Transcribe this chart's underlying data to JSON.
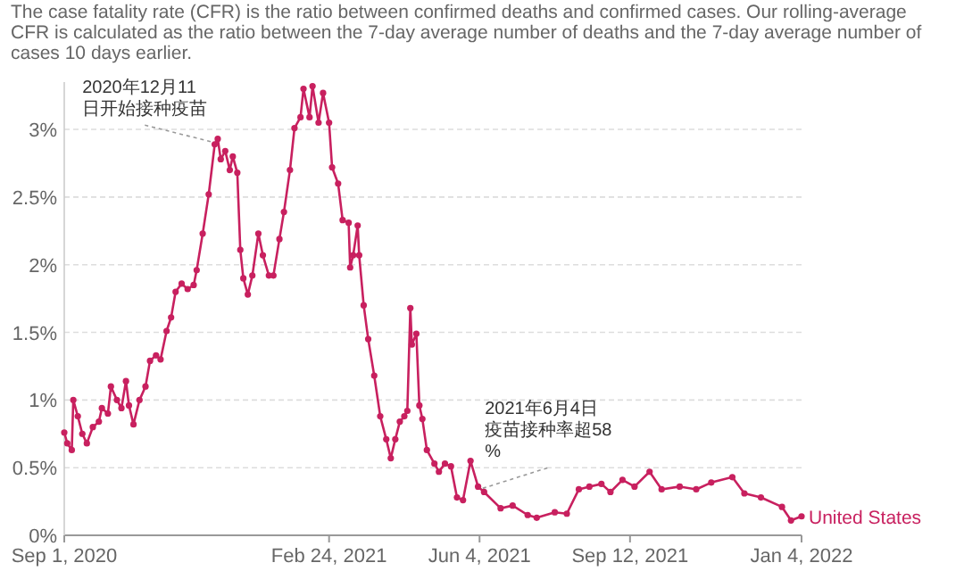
{
  "chart_data": {
    "type": "line",
    "subtitle": "The case fatality rate (CFR) is the ratio between confirmed deaths and confirmed cases. Our rolling-average CFR is calculated as the ratio between the 7-day average number of deaths and the 7-day average number of cases 10 days earlier.",
    "xlim": [
      "2020-09-01",
      "2022-01-04"
    ],
    "xticks": [
      {
        "value": "2020-09-01",
        "label": "Sep 1, 2020"
      },
      {
        "value": "2021-02-24",
        "label": "Feb 24, 2021"
      },
      {
        "value": "2021-06-04",
        "label": "Jun 4, 2021"
      },
      {
        "value": "2021-09-12",
        "label": "Sep 12, 2021"
      },
      {
        "value": "2022-01-04",
        "label": "Jan 4, 2022"
      }
    ],
    "ylim": [
      0,
      3.35
    ],
    "yticks": [
      {
        "value": 0,
        "label": "0%"
      },
      {
        "value": 0.5,
        "label": "0.5%"
      },
      {
        "value": 1,
        "label": "1%"
      },
      {
        "value": 1.5,
        "label": "1.5%"
      },
      {
        "value": 2,
        "label": "2%"
      },
      {
        "value": 2.5,
        "label": "2.5%"
      },
      {
        "value": 3,
        "label": "3%"
      }
    ],
    "grid": "y",
    "legend": false,
    "marker": "circle",
    "annotations": [
      {
        "text": "2020年12月11日开始接种疫苗",
        "x": "2020-12-11",
        "y": 2.9
      },
      {
        "text": "2021年6月4日疫苗接种率超58%",
        "x": "2021-06-04",
        "y": 0.34
      }
    ],
    "series": [
      {
        "name": "United States",
        "color": "#c8205f",
        "x": [
          "2020-09-01",
          "2020-09-03",
          "2020-09-06",
          "2020-09-07",
          "2020-09-10",
          "2020-09-13",
          "2020-09-16",
          "2020-09-20",
          "2020-09-24",
          "2020-09-26",
          "2020-09-30",
          "2020-10-02",
          "2020-10-06",
          "2020-10-09",
          "2020-10-12",
          "2020-10-14",
          "2020-10-17",
          "2020-10-21",
          "2020-10-25",
          "2020-10-28",
          "2020-11-01",
          "2020-11-04",
          "2020-11-08",
          "2020-11-11",
          "2020-11-14",
          "2020-11-18",
          "2020-11-22",
          "2020-11-26",
          "2020-11-28",
          "2020-12-02",
          "2020-12-06",
          "2020-12-10",
          "2020-12-12",
          "2020-12-14",
          "2020-12-17",
          "2020-12-20",
          "2020-12-22",
          "2020-12-25",
          "2020-12-27",
          "2020-12-29",
          "2021-01-01",
          "2021-01-04",
          "2021-01-08",
          "2021-01-11",
          "2021-01-15",
          "2021-01-18",
          "2021-01-22",
          "2021-01-25",
          "2021-01-29",
          "2021-02-01",
          "2021-02-05",
          "2021-02-07",
          "2021-02-11",
          "2021-02-13",
          "2021-02-17",
          "2021-02-20",
          "2021-02-24",
          "2021-02-26",
          "2021-03-02",
          "2021-03-05",
          "2021-03-09",
          "2021-03-10",
          "2021-03-12",
          "2021-03-15",
          "2021-03-16",
          "2021-03-19",
          "2021-03-22",
          "2021-03-26",
          "2021-03-30",
          "2021-04-03",
          "2021-04-06",
          "2021-04-09",
          "2021-04-12",
          "2021-04-15",
          "2021-04-17",
          "2021-04-19",
          "2021-04-20",
          "2021-04-23",
          "2021-04-25",
          "2021-04-27",
          "2021-04-30",
          "2021-05-05",
          "2021-05-08",
          "2021-05-12",
          "2021-05-16",
          "2021-05-20",
          "2021-05-24",
          "2021-05-29",
          "2021-06-03",
          "2021-06-07",
          "2021-06-18",
          "2021-06-26",
          "2021-07-06",
          "2021-07-12",
          "2021-07-24",
          "2021-08-01",
          "2021-08-09",
          "2021-08-16",
          "2021-08-24",
          "2021-08-30",
          "2021-09-07",
          "2021-09-15",
          "2021-09-25",
          "2021-10-03",
          "2021-10-15",
          "2021-10-26",
          "2021-11-05",
          "2021-11-19",
          "2021-11-27",
          "2021-12-08",
          "2021-12-22",
          "2021-12-28",
          "2022-01-04"
        ],
        "values": [
          0.76,
          0.68,
          0.63,
          1.0,
          0.88,
          0.75,
          0.68,
          0.8,
          0.84,
          0.94,
          0.9,
          1.1,
          1.0,
          0.94,
          1.14,
          0.96,
          0.82,
          1.0,
          1.1,
          1.29,
          1.33,
          1.3,
          1.51,
          1.61,
          1.8,
          1.86,
          1.82,
          1.85,
          1.96,
          2.23,
          2.52,
          2.89,
          2.93,
          2.78,
          2.84,
          2.7,
          2.8,
          2.68,
          2.11,
          1.9,
          1.78,
          1.92,
          2.23,
          2.07,
          1.92,
          1.92,
          2.19,
          2.39,
          2.7,
          3.01,
          3.09,
          3.3,
          3.09,
          3.32,
          3.05,
          3.27,
          3.05,
          2.72,
          2.6,
          2.33,
          2.31,
          1.98,
          2.07,
          2.29,
          2.07,
          1.7,
          1.45,
          1.18,
          0.88,
          0.71,
          0.57,
          0.71,
          0.84,
          0.88,
          0.92,
          1.68,
          1.41,
          1.49,
          0.96,
          0.86,
          0.63,
          0.53,
          0.47,
          0.53,
          0.51,
          0.28,
          0.26,
          0.55,
          0.36,
          0.32,
          0.2,
          0.22,
          0.15,
          0.13,
          0.17,
          0.16,
          0.34,
          0.36,
          0.38,
          0.32,
          0.41,
          0.36,
          0.47,
          0.34,
          0.36,
          0.34,
          0.39,
          0.43,
          0.31,
          0.28,
          0.21,
          0.11,
          0.14
        ]
      }
    ]
  }
}
